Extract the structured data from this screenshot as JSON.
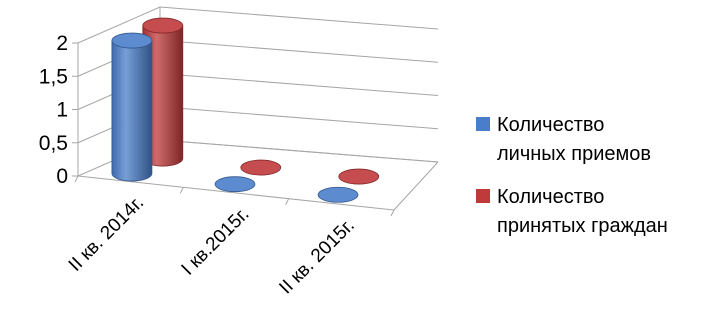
{
  "chart_data": {
    "type": "bar",
    "categories": [
      "II кв. 2014г.",
      "I кв.2015г.",
      "II кв. 2015г."
    ],
    "series": [
      {
        "name_lines": [
          "Количество",
          "личных приемов"
        ],
        "values": [
          2,
          0,
          0
        ],
        "color": "#4a7ecb"
      },
      {
        "name_lines": [
          "Количество",
          "принятых граждан"
        ],
        "values": [
          2,
          0,
          0
        ],
        "color": "#c0393b"
      }
    ],
    "y_ticks": [
      "0",
      "0,5",
      "1",
      "1,5",
      "2"
    ],
    "ylim": [
      0,
      2
    ],
    "grid": true,
    "legend": "right",
    "shape": "cylinder-3d"
  }
}
